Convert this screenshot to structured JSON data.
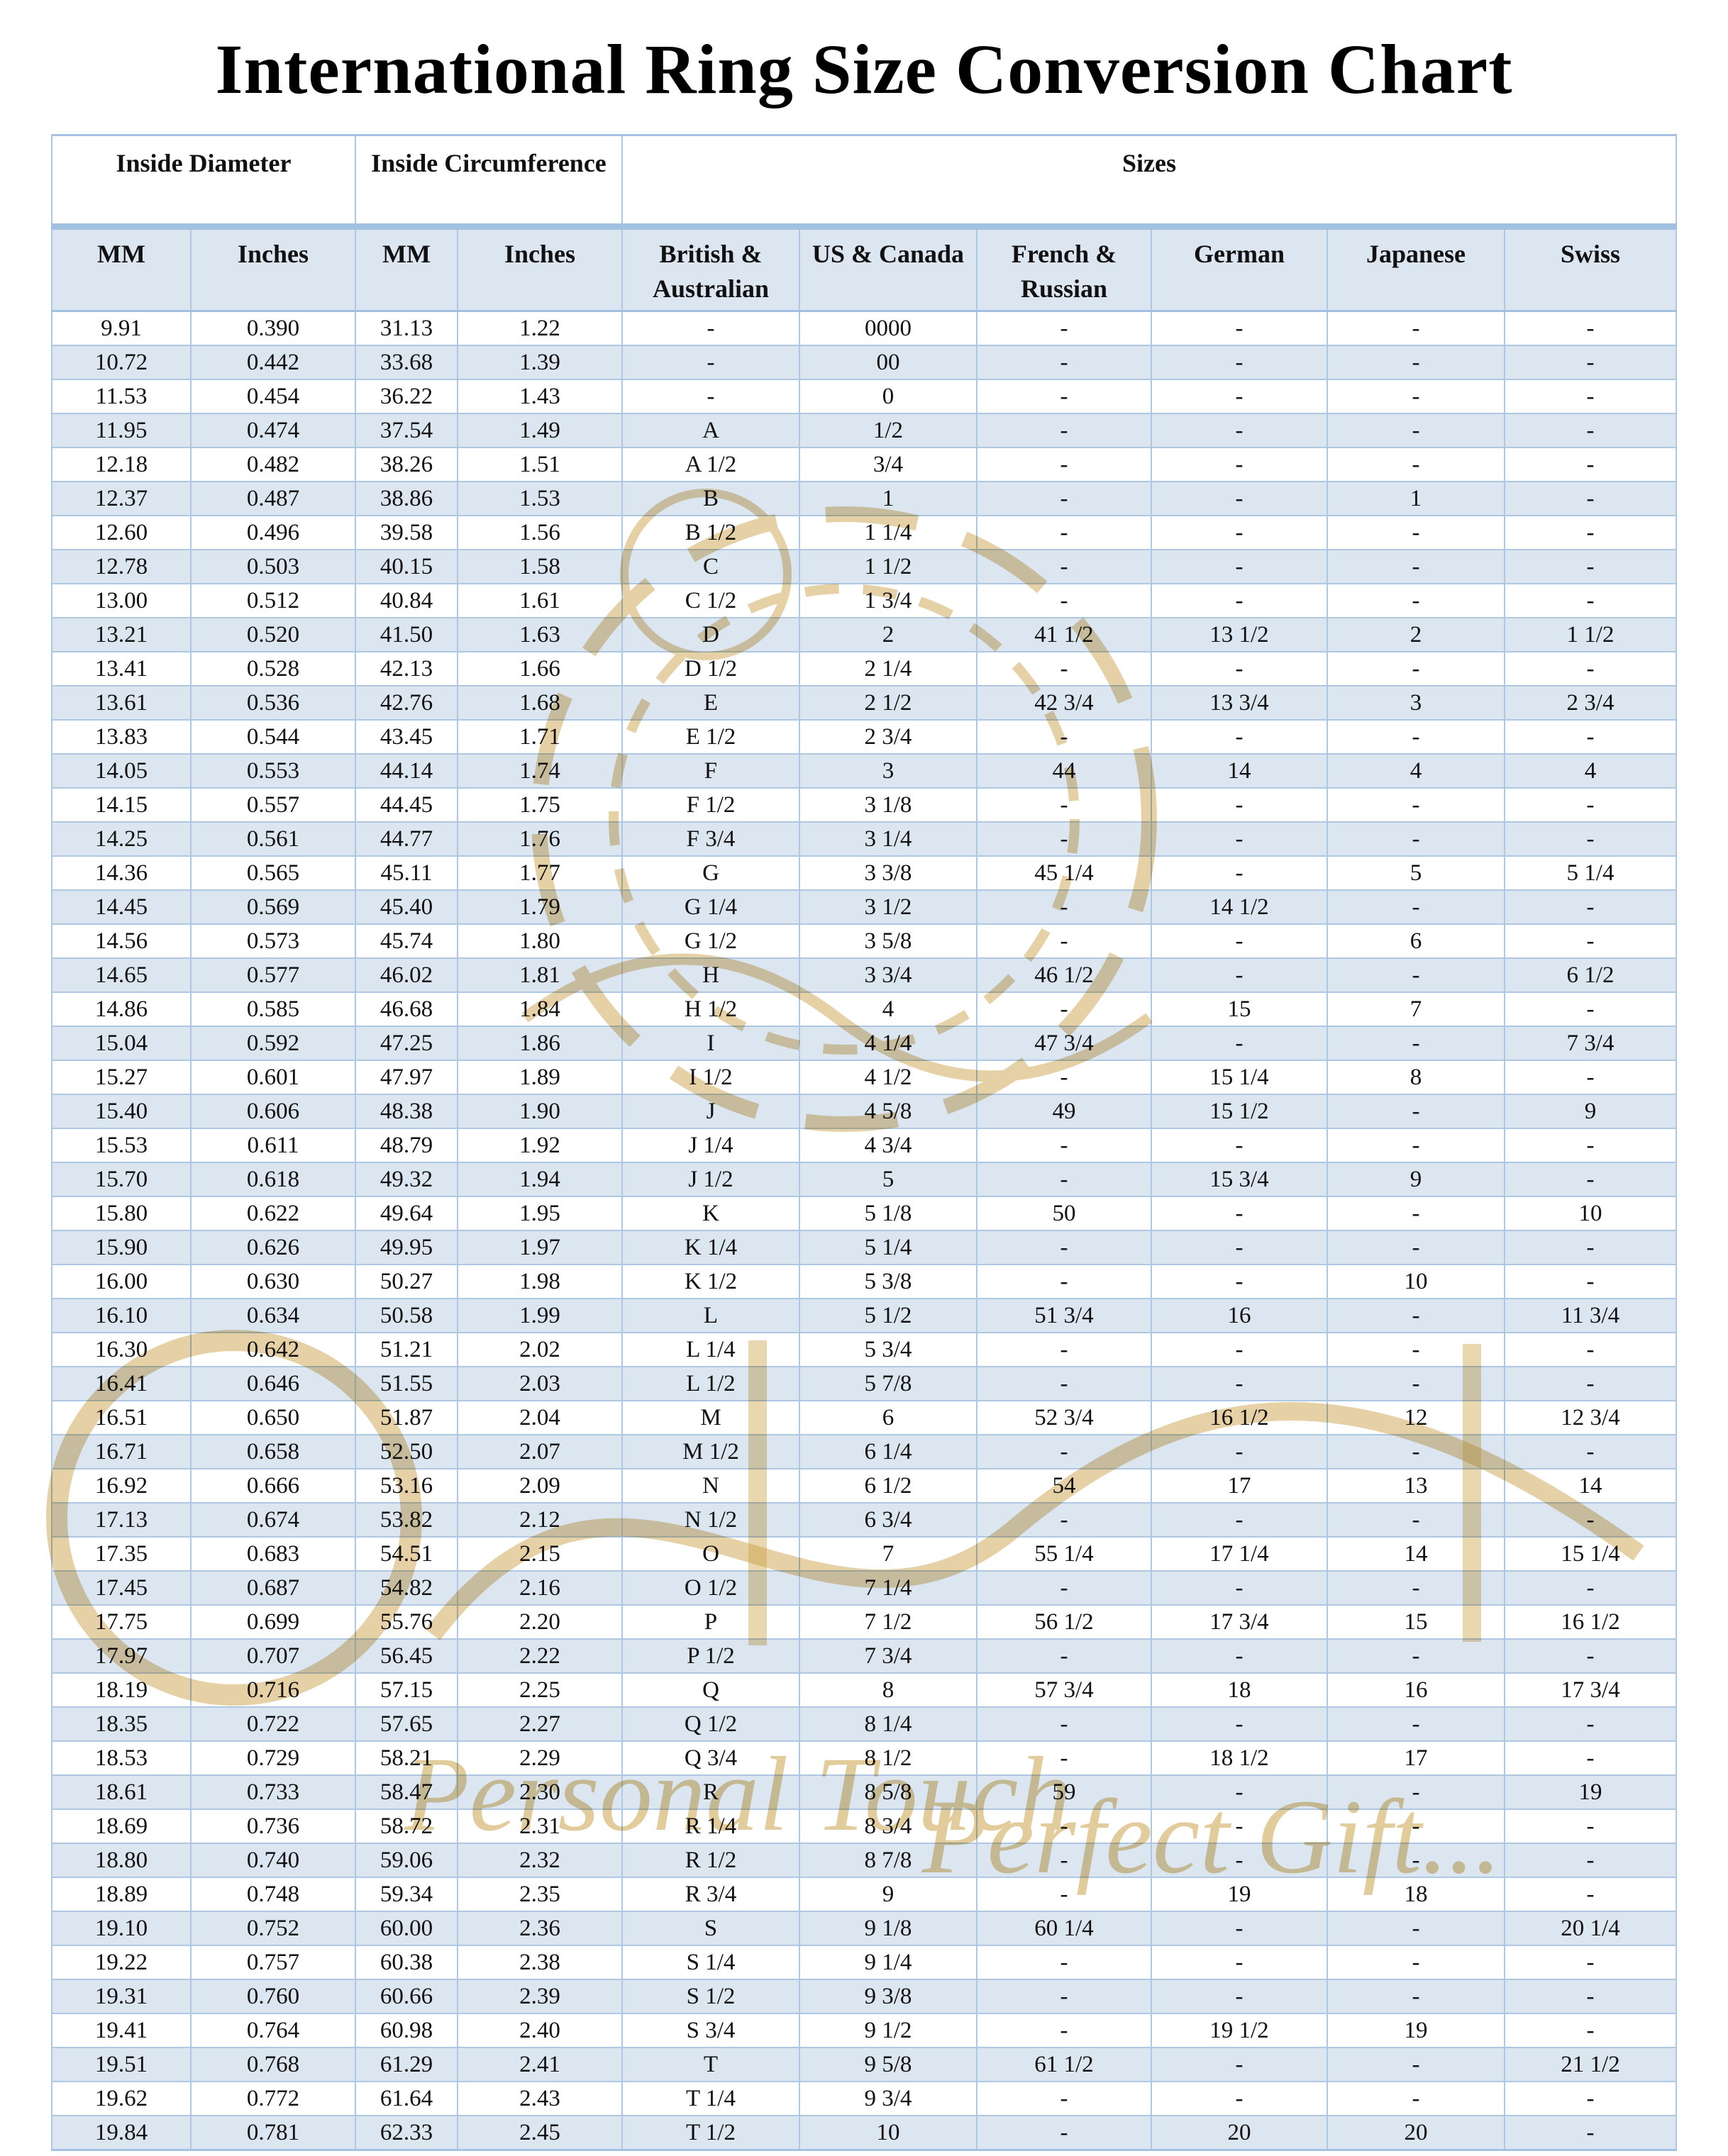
{
  "title": "International Ring Size Conversion Chart",
  "table": {
    "group_headers": [
      {
        "label": "Inside Diameter",
        "colspan": 2
      },
      {
        "label": "Inside Circumference",
        "colspan": 2
      },
      {
        "label": "Sizes",
        "colspan": 6
      }
    ],
    "column_headers": [
      "MM",
      "Inches",
      "MM",
      "Inches",
      "British & Australian",
      "US & Canada",
      "French & Russian",
      "German",
      "Japanese",
      "Swiss"
    ],
    "rows": [
      [
        "9.91",
        "0.390",
        "31.13",
        "1.22",
        "-",
        "0000",
        "-",
        "-",
        "-",
        "-"
      ],
      [
        "10.72",
        "0.442",
        "33.68",
        "1.39",
        "-",
        "00",
        "-",
        "-",
        "-",
        "-"
      ],
      [
        "11.53",
        "0.454",
        "36.22",
        "1.43",
        "-",
        "0",
        "-",
        "-",
        "-",
        "-"
      ],
      [
        "11.95",
        "0.474",
        "37.54",
        "1.49",
        "A",
        "1/2",
        "-",
        "-",
        "-",
        "-"
      ],
      [
        "12.18",
        "0.482",
        "38.26",
        "1.51",
        "A 1/2",
        "3/4",
        "-",
        "-",
        "-",
        "-"
      ],
      [
        "12.37",
        "0.487",
        "38.86",
        "1.53",
        "B",
        "1",
        "-",
        "-",
        "1",
        "-"
      ],
      [
        "12.60",
        "0.496",
        "39.58",
        "1.56",
        "B 1/2",
        "1 1/4",
        "-",
        "-",
        "-",
        "-"
      ],
      [
        "12.78",
        "0.503",
        "40.15",
        "1.58",
        "C",
        "1 1/2",
        "-",
        "-",
        "-",
        "-"
      ],
      [
        "13.00",
        "0.512",
        "40.84",
        "1.61",
        "C 1/2",
        "1 3/4",
        "-",
        "-",
        "-",
        "-"
      ],
      [
        "13.21",
        "0.520",
        "41.50",
        "1.63",
        "D",
        "2",
        "41 1/2",
        "13 1/2",
        "2",
        "1 1/2"
      ],
      [
        "13.41",
        "0.528",
        "42.13",
        "1.66",
        "D 1/2",
        "2 1/4",
        "-",
        "-",
        "-",
        "-"
      ],
      [
        "13.61",
        "0.536",
        "42.76",
        "1.68",
        "E",
        "2 1/2",
        "42 3/4",
        "13 3/4",
        "3",
        "2 3/4"
      ],
      [
        "13.83",
        "0.544",
        "43.45",
        "1.71",
        "E 1/2",
        "2 3/4",
        "-",
        "-",
        "-",
        "-"
      ],
      [
        "14.05",
        "0.553",
        "44.14",
        "1.74",
        "F",
        "3",
        "44",
        "14",
        "4",
        "4"
      ],
      [
        "14.15",
        "0.557",
        "44.45",
        "1.75",
        "F 1/2",
        "3 1/8",
        "-",
        "-",
        "-",
        "-"
      ],
      [
        "14.25",
        "0.561",
        "44.77",
        "1.76",
        "F 3/4",
        "3 1/4",
        "-",
        "-",
        "-",
        "-"
      ],
      [
        "14.36",
        "0.565",
        "45.11",
        "1.77",
        "G",
        "3 3/8",
        "45 1/4",
        "-",
        "5",
        "5 1/4"
      ],
      [
        "14.45",
        "0.569",
        "45.40",
        "1.79",
        "G 1/4",
        "3 1/2",
        "-",
        "14 1/2",
        "-",
        "-"
      ],
      [
        "14.56",
        "0.573",
        "45.74",
        "1.80",
        "G 1/2",
        "3 5/8",
        "-",
        "-",
        "6",
        "-"
      ],
      [
        "14.65",
        "0.577",
        "46.02",
        "1.81",
        "H",
        "3 3/4",
        "46 1/2",
        "-",
        "-",
        "6 1/2"
      ],
      [
        "14.86",
        "0.585",
        "46.68",
        "1.84",
        "H 1/2",
        "4",
        "-",
        "15",
        "7",
        "-"
      ],
      [
        "15.04",
        "0.592",
        "47.25",
        "1.86",
        "I",
        "4 1/4",
        "47 3/4",
        "-",
        "-",
        "7 3/4"
      ],
      [
        "15.27",
        "0.601",
        "47.97",
        "1.89",
        "I 1/2",
        "4 1/2",
        "-",
        "15 1/4",
        "8",
        "-"
      ],
      [
        "15.40",
        "0.606",
        "48.38",
        "1.90",
        "J",
        "4 5/8",
        "49",
        "15 1/2",
        "-",
        "9"
      ],
      [
        "15.53",
        "0.611",
        "48.79",
        "1.92",
        "J 1/4",
        "4 3/4",
        "-",
        "-",
        "-",
        "-"
      ],
      [
        "15.70",
        "0.618",
        "49.32",
        "1.94",
        "J 1/2",
        "5",
        "-",
        "15 3/4",
        "9",
        "-"
      ],
      [
        "15.80",
        "0.622",
        "49.64",
        "1.95",
        "K",
        "5 1/8",
        "50",
        "-",
        "-",
        "10"
      ],
      [
        "15.90",
        "0.626",
        "49.95",
        "1.97",
        "K 1/4",
        "5 1/4",
        "-",
        "-",
        "-",
        "-"
      ],
      [
        "16.00",
        "0.630",
        "50.27",
        "1.98",
        "K 1/2",
        "5 3/8",
        "-",
        "-",
        "10",
        "-"
      ],
      [
        "16.10",
        "0.634",
        "50.58",
        "1.99",
        "L",
        "5 1/2",
        "51 3/4",
        "16",
        "-",
        "11 3/4"
      ],
      [
        "16.30",
        "0.642",
        "51.21",
        "2.02",
        "L 1/4",
        "5 3/4",
        "-",
        "-",
        "-",
        "-"
      ],
      [
        "16.41",
        "0.646",
        "51.55",
        "2.03",
        "L 1/2",
        "5 7/8",
        "-",
        "-",
        "-",
        "-"
      ],
      [
        "16.51",
        "0.650",
        "51.87",
        "2.04",
        "M",
        "6",
        "52 3/4",
        "16 1/2",
        "12",
        "12 3/4"
      ],
      [
        "16.71",
        "0.658",
        "52.50",
        "2.07",
        "M 1/2",
        "6 1/4",
        "-",
        "-",
        "-",
        "-"
      ],
      [
        "16.92",
        "0.666",
        "53.16",
        "2.09",
        "N",
        "6 1/2",
        "54",
        "17",
        "13",
        "14"
      ],
      [
        "17.13",
        "0.674",
        "53.82",
        "2.12",
        "N 1/2",
        "6 3/4",
        "-",
        "-",
        "-",
        "-"
      ],
      [
        "17.35",
        "0.683",
        "54.51",
        "2.15",
        "O",
        "7",
        "55 1/4",
        "17 1/4",
        "14",
        "15 1/4"
      ],
      [
        "17.45",
        "0.687",
        "54.82",
        "2.16",
        "O 1/2",
        "7 1/4",
        "-",
        "-",
        "-",
        "-"
      ],
      [
        "17.75",
        "0.699",
        "55.76",
        "2.20",
        "P",
        "7 1/2",
        "56 1/2",
        "17 3/4",
        "15",
        "16 1/2"
      ],
      [
        "17.97",
        "0.707",
        "56.45",
        "2.22",
        "P 1/2",
        "7 3/4",
        "-",
        "-",
        "-",
        "-"
      ],
      [
        "18.19",
        "0.716",
        "57.15",
        "2.25",
        "Q",
        "8",
        "57 3/4",
        "18",
        "16",
        "17 3/4"
      ],
      [
        "18.35",
        "0.722",
        "57.65",
        "2.27",
        "Q 1/2",
        "8 1/4",
        "-",
        "-",
        "-",
        "-"
      ],
      [
        "18.53",
        "0.729",
        "58.21",
        "2.29",
        "Q 3/4",
        "8 1/2",
        "-",
        "18 1/2",
        "17",
        "-"
      ],
      [
        "18.61",
        "0.733",
        "58.47",
        "2.30",
        "R",
        "8 5/8",
        "59",
        "-",
        "-",
        "19"
      ],
      [
        "18.69",
        "0.736",
        "58.72",
        "2.31",
        "R 1/4",
        "8 3/4",
        "-",
        "-",
        "-",
        "-"
      ],
      [
        "18.80",
        "0.740",
        "59.06",
        "2.32",
        "R 1/2",
        "8 7/8",
        "-",
        "-",
        "-",
        "-"
      ],
      [
        "18.89",
        "0.748",
        "59.34",
        "2.35",
        "R 3/4",
        "9",
        "-",
        "19",
        "18",
        "-"
      ],
      [
        "19.10",
        "0.752",
        "60.00",
        "2.36",
        "S",
        "9 1/8",
        "60 1/4",
        "-",
        "-",
        "20 1/4"
      ],
      [
        "19.22",
        "0.757",
        "60.38",
        "2.38",
        "S 1/4",
        "9 1/4",
        "-",
        "-",
        "-",
        "-"
      ],
      [
        "19.31",
        "0.760",
        "60.66",
        "2.39",
        "S 1/2",
        "9 3/8",
        "-",
        "-",
        "-",
        "-"
      ],
      [
        "19.41",
        "0.764",
        "60.98",
        "2.40",
        "S 3/4",
        "9 1/2",
        "-",
        "19 1/2",
        "19",
        "-"
      ],
      [
        "19.51",
        "0.768",
        "61.29",
        "2.41",
        "T",
        "9 5/8",
        "61 1/2",
        "-",
        "-",
        "21 1/2"
      ],
      [
        "19.62",
        "0.772",
        "61.64",
        "2.43",
        "T 1/4",
        "9 3/4",
        "-",
        "-",
        "-",
        "-"
      ],
      [
        "19.84",
        "0.781",
        "62.33",
        "2.45",
        "T 1/2",
        "10",
        "-",
        "20",
        "20",
        "-"
      ]
    ]
  },
  "watermark": {
    "left_text": "Personal Touch",
    "right_text": "Perfect Gift...",
    "color": "#C79A3A"
  },
  "colors": {
    "band": "#DCE6F1",
    "border": "#AEC8E4",
    "border_heavy": "#A2C1E0",
    "text": "#111111",
    "gold": "#C79A3A"
  }
}
